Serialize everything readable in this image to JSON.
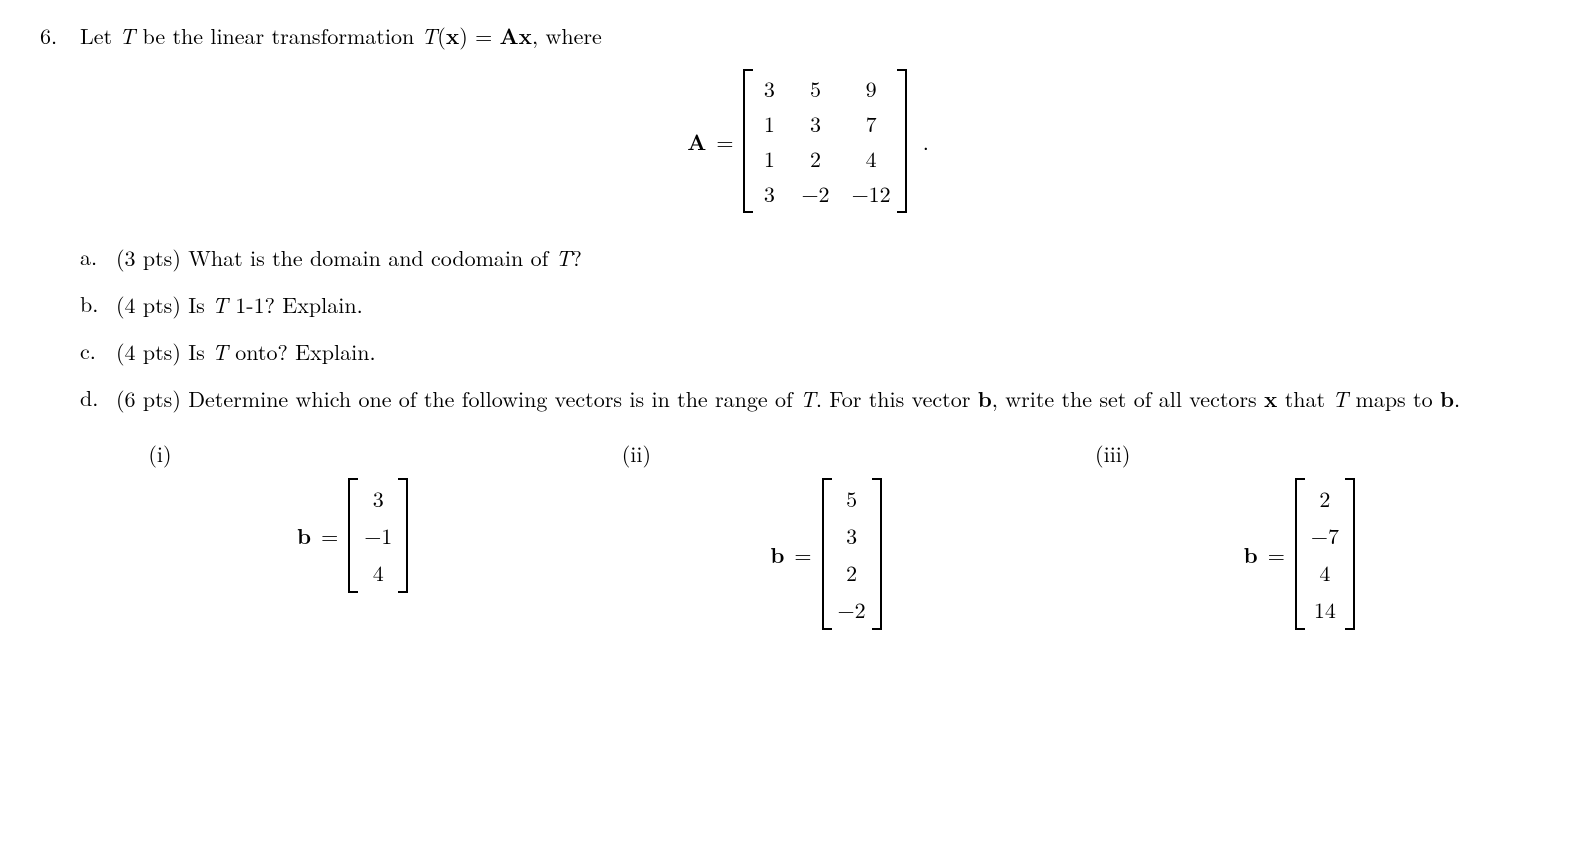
{
  "problem_number": "6.",
  "intro_prefix": "Let ",
  "T": "T",
  "intro_mid": " be the linear transformation ",
  "Tx": "T",
  "paren_x": "(x)",
  "eq": " = ",
  "Ax_A": "A",
  "Ax_x": "x",
  "intro_suffix": ", where",
  "A_label": "A",
  "A_eq": "=",
  "matrix_A": {
    "rows": [
      [
        "3",
        "5",
        "9"
      ],
      [
        "1",
        "3",
        "7"
      ],
      [
        "1",
        "2",
        "4"
      ],
      [
        "3",
        "−2",
        "−12"
      ]
    ]
  },
  "matrix_period": ".",
  "parts": {
    "a": {
      "label": "a.",
      "pts": "(3 pts) ",
      "text1": "What is the domain and codomain of ",
      "T": "T",
      "q": "?"
    },
    "b": {
      "label": "b.",
      "pts": "(4 pts) ",
      "text1": "Is ",
      "T": "T",
      "text2": " 1-1?  Explain."
    },
    "c": {
      "label": "c.",
      "pts": "(4 pts) ",
      "text1": "Is ",
      "T": "T",
      "text2": " onto?  Explain."
    },
    "d": {
      "label": "d.",
      "pts": "(6 pts) ",
      "text1": "Determine which one of the following vectors is in the range of ",
      "T": "T",
      "text2": ".  For this vector ",
      "b": "b",
      "text3": ", write the set of all vectors ",
      "x": "x",
      "text4": " that ",
      "T2": "T",
      "text5": " maps to ",
      "b2": "b",
      "text6": "."
    }
  },
  "vectors": {
    "i": {
      "label": "(i)",
      "b": "b",
      "eq": "=",
      "col": [
        "3",
        "−1",
        "4"
      ]
    },
    "ii": {
      "label": "(ii)",
      "b": "b",
      "eq": "=",
      "col": [
        "5",
        "3",
        "2",
        "−2"
      ]
    },
    "iii": {
      "label": "(iii)",
      "b": "b",
      "eq": "=",
      "col": [
        "2",
        "−7",
        "4",
        "14"
      ]
    }
  }
}
